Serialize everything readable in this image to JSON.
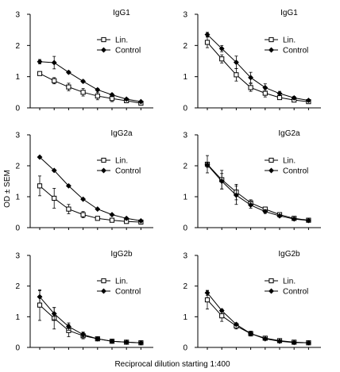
{
  "figure": {
    "ylabel": "OD ± SEM",
    "xlabel": "Reciprocal dilution starting 1:400"
  },
  "chart_data": [
    {
      "type": "line",
      "title": "IgG1",
      "ylim": [
        0,
        3
      ],
      "yticks": [
        "0",
        "1",
        "2",
        "3"
      ],
      "x": [
        1,
        2,
        3,
        4,
        5,
        6,
        7,
        8
      ],
      "legend_position": "top-right",
      "series": [
        {
          "name": "Lin.",
          "marker": "open-square",
          "values": [
            1.1,
            0.87,
            0.67,
            0.5,
            0.38,
            0.3,
            0.23,
            0.15
          ],
          "errors": [
            0.05,
            0.1,
            0.12,
            0.12,
            0.12,
            0.1,
            0.06,
            0.04
          ]
        },
        {
          "name": "Control",
          "marker": "filled-diamond",
          "values": [
            1.48,
            1.45,
            1.14,
            0.85,
            0.58,
            0.42,
            0.28,
            0.2
          ],
          "errors": [
            0.07,
            0.2,
            0.04,
            0.04,
            0.04,
            0.04,
            0.03,
            0.02
          ]
        }
      ]
    },
    {
      "type": "line",
      "title": "IgG1",
      "ylim": [
        0,
        3
      ],
      "yticks": [
        "0",
        "1",
        "2",
        "3"
      ],
      "x": [
        1,
        2,
        3,
        4,
        5,
        6,
        7,
        8
      ],
      "legend_position": "top-right",
      "series": [
        {
          "name": "Lin.",
          "marker": "open-square",
          "values": [
            2.1,
            1.57,
            1.06,
            0.65,
            0.47,
            0.33,
            0.25,
            0.2
          ],
          "errors": [
            0.17,
            0.13,
            0.2,
            0.12,
            0.12,
            0.05,
            0.05,
            0.04
          ]
        },
        {
          "name": "Control",
          "marker": "filled-diamond",
          "values": [
            2.35,
            1.9,
            1.46,
            0.97,
            0.65,
            0.46,
            0.32,
            0.24
          ],
          "errors": [
            0.07,
            0.1,
            0.2,
            0.17,
            0.12,
            0.07,
            0.05,
            0.03
          ]
        }
      ]
    },
    {
      "type": "line",
      "title": "IgG2a",
      "ylim": [
        0,
        3
      ],
      "yticks": [
        "0",
        "1",
        "2",
        "3"
      ],
      "x": [
        1,
        2,
        3,
        4,
        5,
        6,
        7,
        8
      ],
      "legend_position": "top-right",
      "series": [
        {
          "name": "Lin.",
          "marker": "open-square",
          "values": [
            1.35,
            0.95,
            0.6,
            0.42,
            0.3,
            0.24,
            0.2,
            0.18
          ],
          "errors": [
            0.32,
            0.32,
            0.15,
            0.1,
            0.06,
            0.04,
            0.03,
            0.02
          ]
        },
        {
          "name": "Control",
          "marker": "filled-diamond",
          "values": [
            2.28,
            1.85,
            1.35,
            0.92,
            0.6,
            0.42,
            0.3,
            0.22
          ],
          "errors": [
            0.03,
            0.03,
            0.03,
            0.03,
            0.03,
            0.03,
            0.02,
            0.02
          ]
        }
      ]
    },
    {
      "type": "line",
      "title": "IgG2a",
      "ylim": [
        0,
        3
      ],
      "yticks": [
        "0",
        "1",
        "2",
        "3"
      ],
      "x": [
        1,
        2,
        3,
        4,
        5,
        6,
        7,
        8
      ],
      "legend_position": "top-right",
      "series": [
        {
          "name": "Lin.",
          "marker": "open-square",
          "values": [
            2.05,
            1.55,
            1.15,
            0.8,
            0.6,
            0.42,
            0.3,
            0.24
          ],
          "errors": [
            0.28,
            0.3,
            0.25,
            0.1,
            0.06,
            0.04,
            0.03,
            0.02
          ]
        },
        {
          "name": "Control",
          "marker": "filled-diamond",
          "values": [
            2.03,
            1.5,
            1.05,
            0.73,
            0.52,
            0.38,
            0.28,
            0.23
          ],
          "errors": [
            0.08,
            0.25,
            0.3,
            0.1,
            0.06,
            0.04,
            0.03,
            0.02
          ]
        }
      ]
    },
    {
      "type": "line",
      "title": "IgG2b",
      "ylim": [
        0,
        3
      ],
      "yticks": [
        "0",
        "1",
        "2",
        "3"
      ],
      "x": [
        1,
        2,
        3,
        4,
        5,
        6,
        7,
        8
      ],
      "legend_position": "top-right",
      "series": [
        {
          "name": "Lin.",
          "marker": "open-square",
          "values": [
            1.38,
            0.95,
            0.55,
            0.38,
            0.28,
            0.2,
            0.17,
            0.15
          ],
          "errors": [
            0.5,
            0.35,
            0.2,
            0.1,
            0.06,
            0.04,
            0.03,
            0.02
          ]
        },
        {
          "name": "Control",
          "marker": "filled-diamond",
          "values": [
            1.65,
            1.1,
            0.68,
            0.42,
            0.28,
            0.2,
            0.17,
            0.15
          ],
          "errors": [
            0.2,
            0.2,
            0.12,
            0.08,
            0.05,
            0.03,
            0.02,
            0.02
          ]
        }
      ]
    },
    {
      "type": "line",
      "title": "IgG2b",
      "ylim": [
        0,
        3
      ],
      "yticks": [
        "0",
        "1",
        "2",
        "3"
      ],
      "x": [
        1,
        2,
        3,
        4,
        5,
        6,
        7,
        8
      ],
      "legend_position": "top-right",
      "series": [
        {
          "name": "Lin.",
          "marker": "open-square",
          "values": [
            1.55,
            1.03,
            0.7,
            0.45,
            0.3,
            0.22,
            0.17,
            0.15
          ],
          "errors": [
            0.3,
            0.18,
            0.1,
            0.08,
            0.05,
            0.04,
            0.03,
            0.02
          ]
        },
        {
          "name": "Control",
          "marker": "filled-diamond",
          "values": [
            1.78,
            1.2,
            0.75,
            0.45,
            0.28,
            0.2,
            0.16,
            0.15
          ],
          "errors": [
            0.08,
            0.05,
            0.04,
            0.04,
            0.04,
            0.03,
            0.02,
            0.02
          ]
        }
      ]
    }
  ]
}
